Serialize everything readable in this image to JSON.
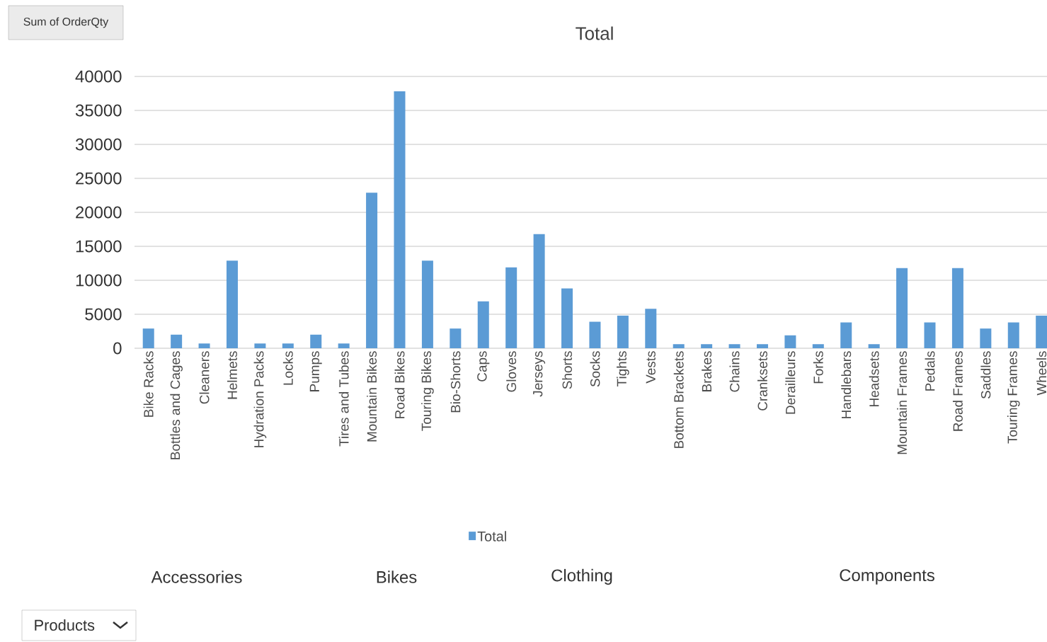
{
  "chart_data": {
    "type": "bar",
    "title": "Total",
    "categories": [
      "Bike Racks",
      "Bottles and Cages",
      "Cleaners",
      "Helmets",
      "Hydration Packs",
      "Locks",
      "Pumps",
      "Tires and Tubes",
      "Mountain Bikes",
      "Road Bikes",
      "Touring Bikes",
      "Bio-Shorts",
      "Caps",
      "Gloves",
      "Jerseys",
      "Shorts",
      "Socks",
      "Tights",
      "Vests",
      "Bottom Brackets",
      "Brakes",
      "Chains",
      "Cranksets",
      "Derailleurs",
      "Forks",
      "Handlebars",
      "Headsets",
      "Mountain Frames",
      "Pedals",
      "Road Frames",
      "Saddles",
      "Touring Frames",
      "Wheels"
    ],
    "series": [
      {
        "name": "Total",
        "color": "#5b9bd5",
        "values": [
          2900,
          2000,
          700,
          12900,
          700,
          700,
          2000,
          700,
          22900,
          37800,
          12900,
          2900,
          6900,
          11900,
          16800,
          8800,
          3900,
          4800,
          5800,
          600,
          600,
          600,
          600,
          1900,
          600,
          3800,
          600,
          11800,
          3800,
          11800,
          2900,
          3800,
          4800
        ]
      }
    ],
    "ylim": [
      0,
      40000
    ],
    "yticks": [
      0,
      5000,
      10000,
      15000,
      20000,
      25000,
      30000,
      35000,
      40000
    ],
    "grid": "y",
    "legend": "bottom",
    "annotations": [
      "Accessories",
      "Bikes",
      "Clothing",
      "Components",
      "Sum of OrderQty",
      "Products"
    ]
  }
}
